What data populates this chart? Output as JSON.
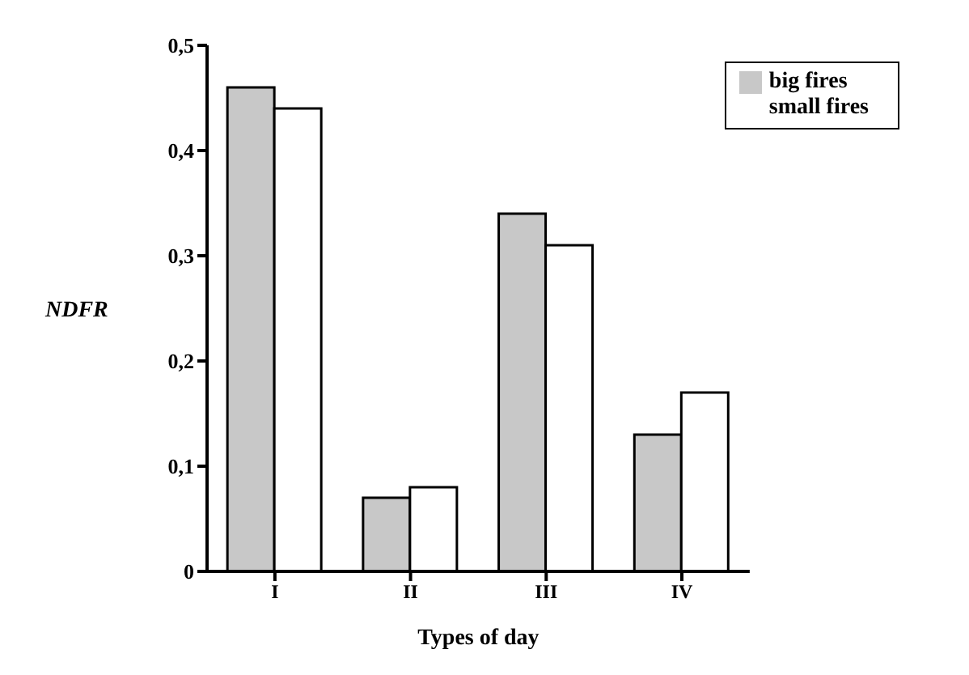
{
  "chart_data": {
    "type": "bar",
    "xlabel": "Types of day",
    "ylabel": "NDFR",
    "categories": [
      "I",
      "II",
      "III",
      "IV"
    ],
    "series": [
      {
        "name": "big fires",
        "color": "#c8c8c8",
        "values": [
          0.46,
          0.07,
          0.34,
          0.13
        ]
      },
      {
        "name": "small fires",
        "color": "#ffffff",
        "values": [
          0.44,
          0.08,
          0.31,
          0.17
        ]
      }
    ],
    "ylim": [
      0,
      0.5
    ],
    "yticks": [
      {
        "value": 0,
        "label": "0"
      },
      {
        "value": 0.1,
        "label": "0,1"
      },
      {
        "value": 0.2,
        "label": "0,2"
      },
      {
        "value": 0.3,
        "label": "0,3"
      },
      {
        "value": 0.4,
        "label": "0,4"
      },
      {
        "value": 0.5,
        "label": "0,5"
      }
    ],
    "legend": "top right",
    "grid": false
  }
}
